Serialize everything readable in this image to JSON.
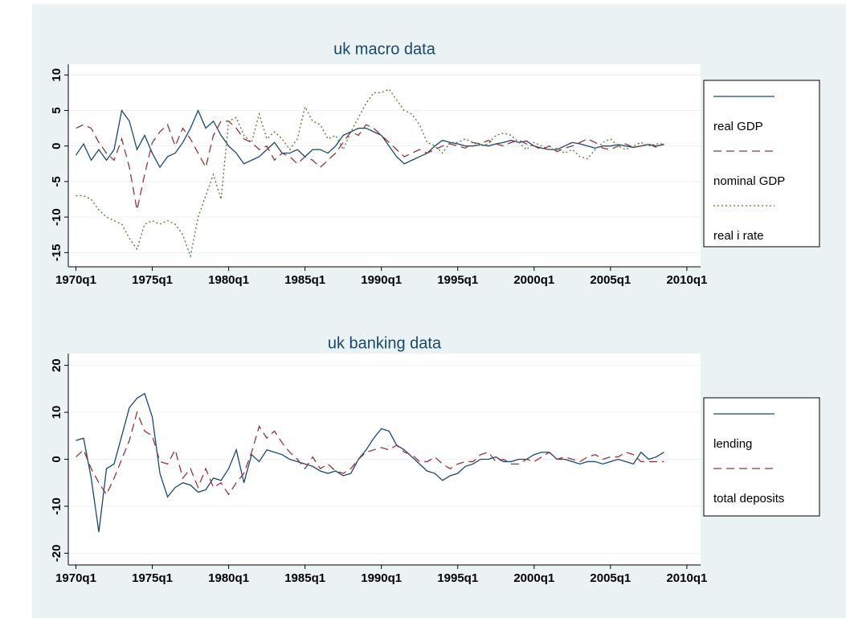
{
  "chart_data": [
    {
      "type": "line",
      "title": "uk macro data",
      "x": [
        1970,
        1970.5,
        1971,
        1971.5,
        1972,
        1972.5,
        1973,
        1973.5,
        1974,
        1974.5,
        1975,
        1975.5,
        1976,
        1976.5,
        1977,
        1977.5,
        1978,
        1978.5,
        1979,
        1979.5,
        1980,
        1980.5,
        1981,
        1981.5,
        1982,
        1982.5,
        1983,
        1983.5,
        1984,
        1984.5,
        1985,
        1985.5,
        1986,
        1986.5,
        1987,
        1987.5,
        1988,
        1988.5,
        1989,
        1989.5,
        1990,
        1990.5,
        1991,
        1991.5,
        1992,
        1992.5,
        1993,
        1993.5,
        1994,
        1994.5,
        1995,
        1995.5,
        1996,
        1996.5,
        1997,
        1997.5,
        1998,
        1998.5,
        1999,
        1999.5,
        2000,
        2000.5,
        2001,
        2001.5,
        2002,
        2002.5,
        2003,
        2003.5,
        2004,
        2004.5,
        2005,
        2005.5,
        2006,
        2006.5,
        2007,
        2007.5,
        2008,
        2008.5
      ],
      "series": [
        {
          "name": "real GDP",
          "color": "#1a476f",
          "style": "solid",
          "values": [
            -1.3,
            0.3,
            -2,
            -0.5,
            -2,
            -0.5,
            5,
            3.5,
            -0.5,
            1.5,
            -1,
            -3,
            -1.5,
            -1,
            0.5,
            2.5,
            5,
            2.5,
            3.5,
            1.5,
            0,
            -1,
            -2.5,
            -2,
            -1.5,
            -0.5,
            0.5,
            -1,
            -1,
            -0.5,
            -1.5,
            -0.5,
            -0.5,
            -1,
            0,
            1.5,
            2,
            2.5,
            2.5,
            2,
            1.5,
            0,
            -1.5,
            -2.5,
            -2,
            -1.5,
            -1,
            0,
            0.8,
            0.5,
            0.3,
            0,
            0,
            0.2,
            0,
            0.3,
            0.5,
            0.8,
            0.5,
            0.7,
            0,
            -0.3,
            -0.5,
            -0.5,
            0,
            0.5,
            0.3,
            0,
            -0.3,
            0,
            0,
            0.2,
            0,
            -0.2,
            0,
            0.2,
            0,
            0.2
          ]
        },
        {
          "name": "nominal GDP",
          "color": "#90353b",
          "style": "dashed",
          "values": [
            2.5,
            3,
            2.5,
            0.5,
            -1,
            -2,
            1,
            -3,
            -9,
            -4,
            0.5,
            2,
            3,
            0,
            2.5,
            1,
            -1,
            -3,
            1.5,
            3.5,
            3.5,
            2.5,
            1,
            0.5,
            -0.5,
            0,
            -2,
            -1,
            -1.5,
            -2.5,
            -1.5,
            -2,
            -3,
            -2,
            -1,
            0.5,
            2,
            1.5,
            3,
            2.5,
            1.5,
            0.5,
            -0.5,
            -1.5,
            -1,
            -0.5,
            -1,
            -0.5,
            0,
            0.3,
            0,
            -0.3,
            0.5,
            0.3,
            0.8,
            0.3,
            0,
            0.5,
            0.8,
            0.3,
            0,
            -0.5,
            0,
            -0.8,
            -0.3,
            0,
            0.5,
            1,
            0.5,
            -0.3,
            -0.5,
            0,
            0.3,
            -0.2,
            0,
            0.3,
            -0.2,
            0.3
          ]
        },
        {
          "name": "real i rate",
          "color": "#55752f",
          "style": "dotted",
          "values": [
            -7,
            -7,
            -7.5,
            -9,
            -10,
            -10.5,
            -11,
            -13,
            -14.5,
            -11,
            -10.5,
            -11,
            -10.5,
            -11,
            -12.5,
            -15.5,
            -10,
            -7,
            -4,
            -7.5,
            3.5,
            4,
            1.5,
            0.5,
            4.5,
            1,
            2,
            1,
            -0.5,
            1,
            5.5,
            3.5,
            3,
            1,
            1.5,
            -0.5,
            2,
            4,
            6,
            7.5,
            7.5,
            8,
            6.5,
            5,
            4.5,
            3,
            0.5,
            0,
            -1,
            0.5,
            0.5,
            1,
            0.5,
            0,
            0.3,
            1.5,
            1.8,
            1.5,
            0.5,
            -0.5,
            0.5,
            0,
            -0.5,
            -0.3,
            -1,
            -0.5,
            -1.5,
            -1.8,
            -0.5,
            0.5,
            1,
            0,
            -0.5,
            0,
            0.5,
            0,
            0.3,
            0.3
          ]
        }
      ],
      "xlim": [
        1969.5,
        2010.9
      ],
      "xticks": [
        {
          "value": 1970,
          "label": "1970q1"
        },
        {
          "value": 1975,
          "label": "1975q1"
        },
        {
          "value": 1980,
          "label": "1980q1"
        },
        {
          "value": 1985,
          "label": "1985q1"
        },
        {
          "value": 1990,
          "label": "1990q1"
        },
        {
          "value": 1995,
          "label": "1995q1"
        },
        {
          "value": 2000,
          "label": "2000q1"
        },
        {
          "value": 2005,
          "label": "2005q1"
        },
        {
          "value": 2010,
          "label": "2010q1"
        }
      ],
      "ylim": [
        -17,
        11.5
      ],
      "yticks": [
        -15,
        -10,
        -5,
        0,
        5,
        10
      ],
      "grid": true,
      "legend": "right"
    },
    {
      "type": "line",
      "title": "uk banking data",
      "x": [
        1970,
        1970.5,
        1971,
        1971.5,
        1972,
        1972.5,
        1973,
        1973.5,
        1974,
        1974.5,
        1975,
        1975.5,
        1976,
        1976.5,
        1977,
        1977.5,
        1978,
        1978.5,
        1979,
        1979.5,
        1980,
        1980.5,
        1981,
        1981.5,
        1982,
        1982.5,
        1983,
        1983.5,
        1984,
        1984.5,
        1985,
        1985.5,
        1986,
        1986.5,
        1987,
        1987.5,
        1988,
        1988.5,
        1989,
        1989.5,
        1990,
        1990.5,
        1991,
        1991.5,
        1992,
        1992.5,
        1993,
        1993.5,
        1994,
        1994.5,
        1995,
        1995.5,
        1996,
        1996.5,
        1997,
        1997.5,
        1998,
        1998.5,
        1999,
        1999.5,
        2000,
        2000.5,
        2001,
        2001.5,
        2002,
        2002.5,
        2003,
        2003.5,
        2004,
        2004.5,
        2005,
        2005.5,
        2006,
        2006.5,
        2007,
        2007.5,
        2008,
        2008.5
      ],
      "series": [
        {
          "name": "lending",
          "color": "#1a476f",
          "style": "solid",
          "values": [
            4,
            4.5,
            -4,
            -15.5,
            -2,
            -1,
            5,
            11,
            13,
            14,
            9,
            -3,
            -8,
            -6,
            -5,
            -5.5,
            -7,
            -6.5,
            -4,
            -4.5,
            -2,
            2,
            -5,
            1,
            -0.5,
            2,
            1.5,
            1,
            0,
            -0.5,
            -1,
            -1.5,
            -2.5,
            -3,
            -2.5,
            -3.5,
            -3,
            0,
            2,
            4.5,
            6.5,
            6,
            3,
            2,
            0.5,
            -1,
            -2.5,
            -3,
            -4.5,
            -3.5,
            -3,
            -1.5,
            -1,
            0,
            0,
            0.5,
            -0.5,
            -0.5,
            0,
            0,
            1,
            1.5,
            1.5,
            0,
            0,
            -0.5,
            -1,
            -0.5,
            -0.5,
            -1,
            -0.5,
            0,
            -0.5,
            -1,
            1.5,
            0,
            0.5,
            1.5
          ]
        },
        {
          "name": "total deposits",
          "color": "#90353b",
          "style": "dashed",
          "values": [
            0.5,
            2,
            -2,
            -5,
            -7.5,
            -4,
            0,
            4,
            10,
            6,
            5,
            -0.5,
            -1,
            2,
            -4,
            -2,
            -6,
            -2,
            -6,
            -5,
            -7.5,
            -5,
            -3,
            1.5,
            7,
            4.5,
            6,
            3.5,
            1.5,
            0,
            -2,
            0.5,
            -2,
            -1,
            -2.5,
            -3,
            -2,
            0,
            1.5,
            2,
            2.5,
            2,
            3,
            1.5,
            1,
            -0.5,
            -0.5,
            0.5,
            -1,
            -2,
            -1,
            -0.5,
            -0.5,
            1,
            1.5,
            -0.5,
            0,
            -1,
            -1,
            0,
            -0.5,
            0.5,
            1.5,
            0,
            0.5,
            0,
            -0.5,
            0.5,
            1,
            0,
            0.5,
            0.5,
            1.5,
            1,
            -0.5,
            -0.5,
            -0.5,
            -0.5
          ]
        }
      ],
      "xlim": [
        1969.5,
        2010.9
      ],
      "xticks": [
        {
          "value": 1970,
          "label": "1970q1"
        },
        {
          "value": 1975,
          "label": "1975q1"
        },
        {
          "value": 1980,
          "label": "1980q1"
        },
        {
          "value": 1985,
          "label": "1985q1"
        },
        {
          "value": 1990,
          "label": "1990q1"
        },
        {
          "value": 1995,
          "label": "1995q1"
        },
        {
          "value": 2000,
          "label": "2000q1"
        },
        {
          "value": 2005,
          "label": "2005q1"
        },
        {
          "value": 2010,
          "label": "2010q1"
        }
      ],
      "ylim": [
        -22.5,
        22.5
      ],
      "yticks": [
        -20,
        -10,
        0,
        10,
        20
      ],
      "grid": true,
      "legend": "right"
    }
  ]
}
